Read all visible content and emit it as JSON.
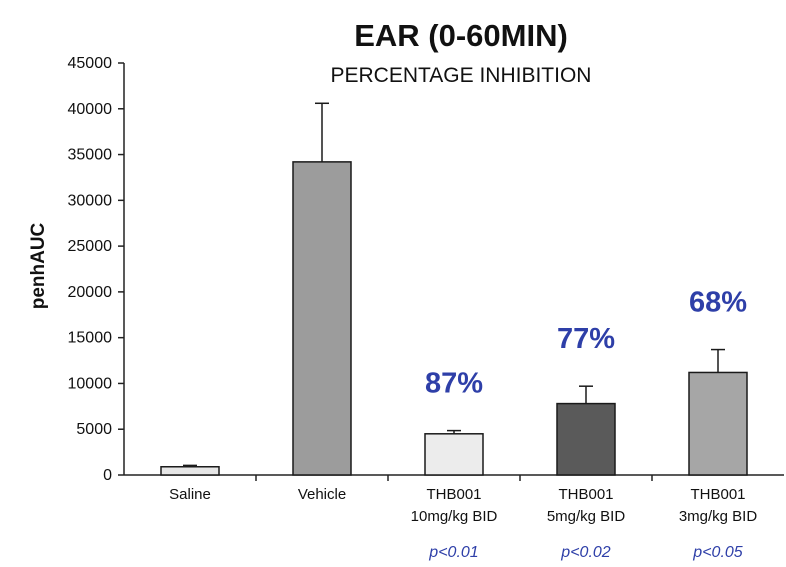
{
  "chart_data": {
    "type": "bar",
    "title": "EAR (0-60MIN)",
    "subtitle": "PERCENTAGE INHIBITION",
    "ylabel": "penhAUC",
    "xlabel": "",
    "ylim": [
      0,
      45000
    ],
    "yticks": [
      0,
      5000,
      10000,
      15000,
      20000,
      25000,
      30000,
      35000,
      40000,
      45000
    ],
    "grid": false,
    "categories": [
      [
        "Saline"
      ],
      [
        "Vehicle"
      ],
      [
        "THB001",
        "10mg/kg BID"
      ],
      [
        "THB001",
        "5mg/kg BID"
      ],
      [
        "THB001",
        "3mg/kg BID"
      ]
    ],
    "values": [
      900,
      34200,
      4500,
      7800,
      11200
    ],
    "error_upper": [
      1050,
      40600,
      4850,
      9700,
      13700
    ],
    "bar_colors": [
      "#e6e6e6",
      "#9c9c9c",
      "#ececec",
      "#5a5a5a",
      "#a6a6a6"
    ],
    "inhibition_labels": [
      "",
      "",
      "87%",
      "77%",
      "68%"
    ],
    "p_values": [
      "",
      "",
      "p<0.01",
      "p<0.02",
      "p<0.05"
    ],
    "annotation_color": "#2e3fa8"
  }
}
